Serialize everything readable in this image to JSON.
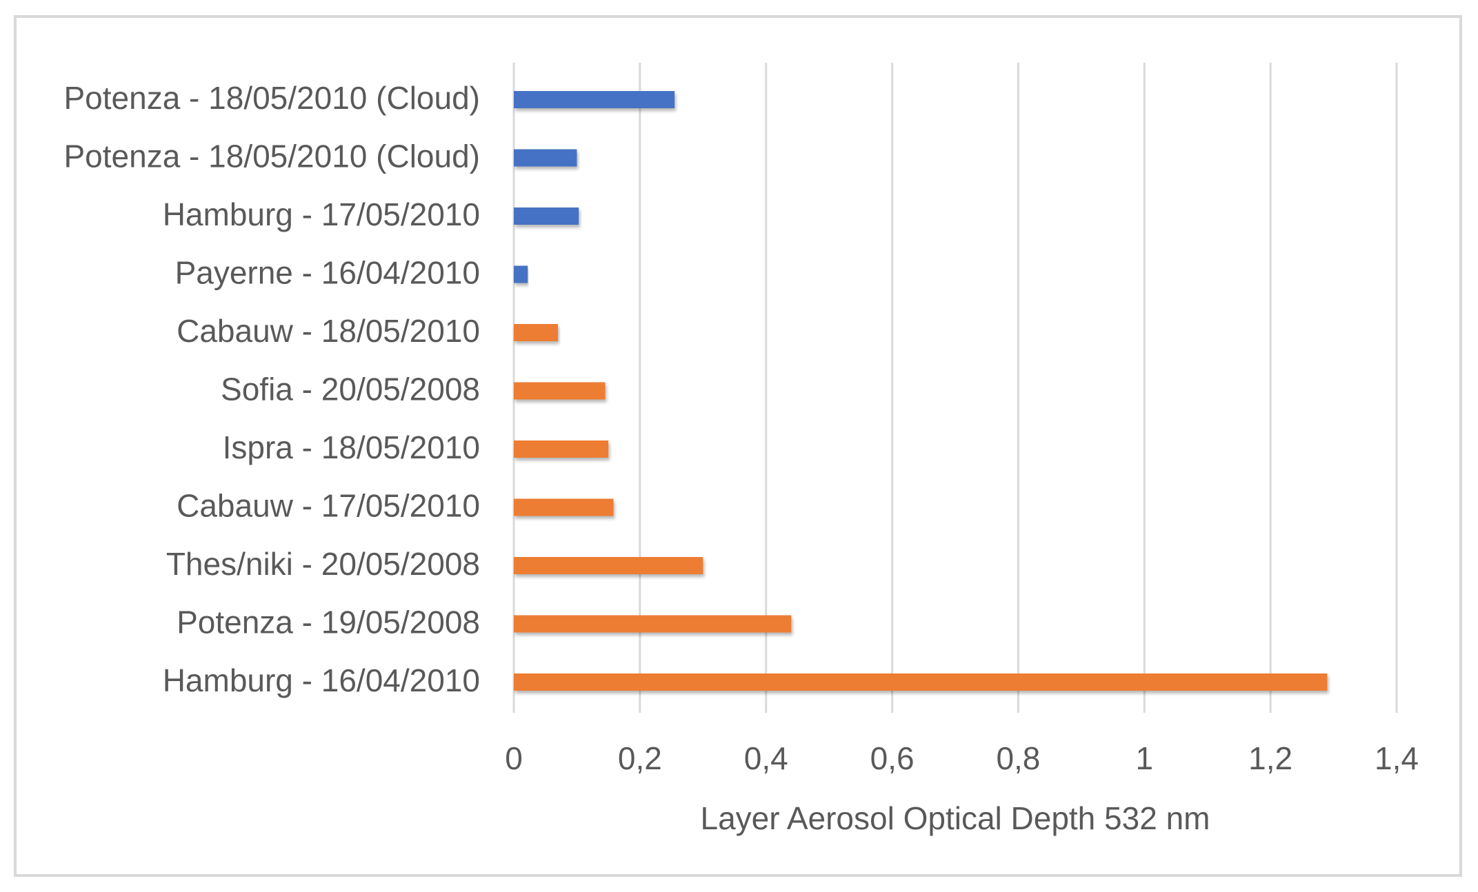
{
  "chart_data": {
    "type": "bar",
    "orientation": "horizontal",
    "title": "",
    "xlabel": "Layer Aerosol Optical Depth 532 nm",
    "ylabel": "",
    "xlim": [
      0,
      1.4
    ],
    "xticks": [
      0,
      0.2,
      0.4,
      0.6,
      0.8,
      1,
      1.2,
      1.4
    ],
    "xtick_labels": [
      "0",
      "0,2",
      "0,4",
      "0,6",
      "0,8",
      "1",
      "1,2",
      "1,4"
    ],
    "grid": "vertical",
    "legend": "none",
    "colors": {
      "blue": "#4472c4",
      "orange": "#ed7d31",
      "grid": "#d9d9d9",
      "text": "#595959"
    },
    "bars": [
      {
        "label": "Potenza - 18/05/2010 (Cloud)",
        "value": 0.255,
        "color": "blue"
      },
      {
        "label": "Potenza - 18/05/2010 (Cloud)",
        "value": 0.1,
        "color": "blue"
      },
      {
        "label": "Hamburg - 17/05/2010",
        "value": 0.103,
        "color": "blue"
      },
      {
        "label": "Payerne - 16/04/2010",
        "value": 0.022,
        "color": "blue"
      },
      {
        "label": "Cabauw - 18/05/2010",
        "value": 0.07,
        "color": "orange"
      },
      {
        "label": "Sofia - 20/05/2008",
        "value": 0.145,
        "color": "orange"
      },
      {
        "label": "Ispra - 18/05/2010",
        "value": 0.15,
        "color": "orange"
      },
      {
        "label": "Cabauw - 17/05/2010",
        "value": 0.158,
        "color": "orange"
      },
      {
        "label": "Thes/niki - 20/05/2008",
        "value": 0.3,
        "color": "orange"
      },
      {
        "label": "Potenza - 19/05/2008",
        "value": 0.44,
        "color": "orange"
      },
      {
        "label": "Hamburg - 16/04/2010",
        "value": 1.29,
        "color": "orange"
      }
    ]
  }
}
